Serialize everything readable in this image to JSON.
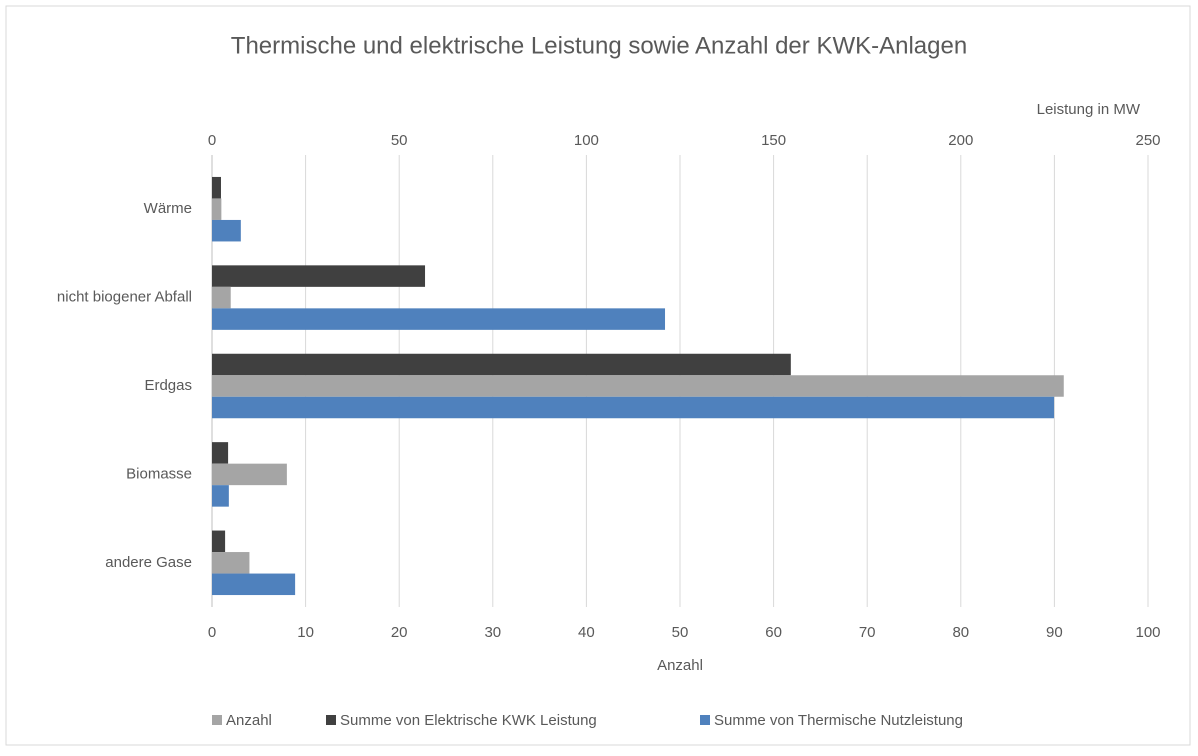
{
  "chart_data": {
    "type": "barh",
    "title": "Thermische und elektrische Leistung sowie Anzahl der KWK-Anlagen",
    "xlabel": "Anzahl",
    "x2label": "Leistung in MW",
    "categories": [
      "Wärme",
      "nicht biogener Abfall",
      "Erdgas",
      "Biomasse",
      "andere Gase"
    ],
    "series": [
      {
        "name": "Anzahl",
        "color": "#a5a5a5",
        "values": [
          1,
          2,
          91,
          8,
          4
        ]
      },
      {
        "name": "Summe von Elektrische KWK Leistung",
        "color": "#404040",
        "axis": "x2",
        "values": [
          2.4,
          56.9,
          154.6,
          4.3,
          3.5
        ]
      },
      {
        "name": "Summe von Thermische Nutzleistung",
        "color": "#4f81bd",
        "axis": "x2",
        "values": [
          7.7,
          121,
          224.9,
          4.5,
          22.2
        ]
      }
    ],
    "xlim": [
      0,
      100
    ],
    "xticks": [
      0,
      10,
      20,
      30,
      40,
      50,
      60,
      70,
      80,
      90,
      100
    ],
    "x2lim": [
      0,
      250
    ],
    "x2ticks": [
      0,
      50,
      100,
      150,
      200,
      250
    ],
    "grid": true,
    "legend": "bottom"
  }
}
